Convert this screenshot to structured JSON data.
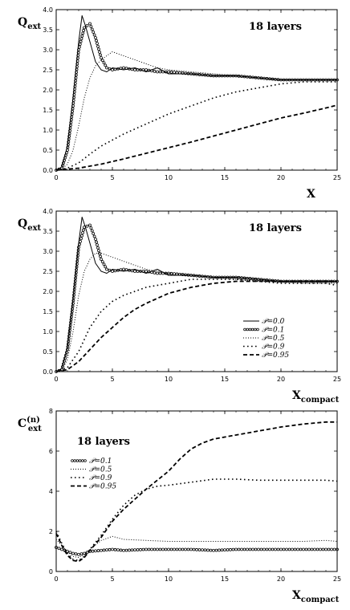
{
  "chart_data": [
    {
      "type": "line",
      "ylabel_main": "Q",
      "ylabel_sub": "ext",
      "xlabel_main": "X",
      "xlabel_sub": "",
      "annotation": "18 layers",
      "xlim": [
        0,
        25
      ],
      "ylim": [
        0,
        4
      ],
      "xticks": [
        "0",
        "5",
        "10",
        "15",
        "20",
        "25"
      ],
      "yticks": [
        "0.0",
        "0.5",
        "1.0",
        "1.5",
        "2.0",
        "2.5",
        "3.0",
        "3.5",
        "4.0"
      ],
      "series": [
        {
          "style": "solid",
          "x": [
            0,
            0.5,
            1,
            1.5,
            2,
            2.3,
            2.6,
            3,
            3.5,
            4,
            4.5,
            5,
            6,
            7,
            8,
            9,
            10,
            12,
            14,
            16,
            18,
            20,
            22,
            24,
            25
          ],
          "y": [
            0,
            0.08,
            0.6,
            1.8,
            3.2,
            3.85,
            3.6,
            3.2,
            2.7,
            2.5,
            2.45,
            2.55,
            2.5,
            2.55,
            2.45,
            2.55,
            2.4,
            2.4,
            2.35,
            2.35,
            2.3,
            2.25,
            2.25,
            2.25,
            2.25
          ]
        },
        {
          "style": "circles",
          "x": [
            0,
            0.5,
            1,
            1.5,
            2,
            2.5,
            3,
            3.5,
            4,
            4.5,
            5,
            6,
            7,
            8,
            9,
            10,
            12,
            14,
            16,
            18,
            20,
            22,
            24,
            25
          ],
          "y": [
            0,
            0.05,
            0.5,
            1.6,
            3.0,
            3.55,
            3.65,
            3.3,
            2.8,
            2.55,
            2.5,
            2.55,
            2.5,
            2.5,
            2.45,
            2.45,
            2.4,
            2.35,
            2.35,
            2.3,
            2.25,
            2.25,
            2.25,
            2.25
          ]
        },
        {
          "style": "dotted",
          "x": [
            0,
            0.5,
            1,
            1.5,
            2,
            2.5,
            3,
            3.5,
            4,
            4.5,
            5,
            5.5,
            6,
            7,
            8,
            9,
            10,
            12,
            14,
            16,
            18,
            20,
            22,
            24,
            25
          ],
          "y": [
            0,
            0.03,
            0.15,
            0.5,
            1.1,
            1.8,
            2.3,
            2.6,
            2.75,
            2.85,
            2.95,
            2.9,
            2.85,
            2.75,
            2.65,
            2.55,
            2.5,
            2.45,
            2.4,
            2.35,
            2.3,
            2.25,
            2.25,
            2.25,
            2.25
          ]
        },
        {
          "style": "sparse-dotted",
          "x": [
            0,
            1,
            2,
            3,
            4,
            5,
            6,
            8,
            10,
            12,
            14,
            16,
            18,
            20,
            22,
            24,
            25
          ],
          "y": [
            0,
            0.05,
            0.18,
            0.4,
            0.6,
            0.75,
            0.9,
            1.15,
            1.4,
            1.6,
            1.8,
            1.95,
            2.05,
            2.15,
            2.2,
            2.2,
            2.2
          ]
        },
        {
          "style": "dashed",
          "x": [
            0,
            2,
            4,
            6,
            8,
            10,
            12,
            14,
            16,
            18,
            20,
            22,
            24,
            25
          ],
          "y": [
            0,
            0.05,
            0.15,
            0.28,
            0.42,
            0.56,
            0.7,
            0.85,
            1.0,
            1.15,
            1.3,
            1.42,
            1.55,
            1.62
          ]
        }
      ]
    },
    {
      "type": "line",
      "ylabel_main": "Q",
      "ylabel_sub": "ext",
      "xlabel_main": "X",
      "xlabel_sub": "compact",
      "annotation": "18 layers",
      "xlim": [
        0,
        25
      ],
      "ylim": [
        0,
        4
      ],
      "xticks": [
        "0",
        "5",
        "10",
        "15",
        "20",
        "25"
      ],
      "yticks": [
        "0.0",
        "0.5",
        "1.0",
        "1.5",
        "2.0",
        "2.5",
        "3.0",
        "3.5",
        "4.0"
      ],
      "legend": [
        "𝒫=0.0",
        "𝒫=0.1",
        "𝒫=0.5",
        "𝒫=0.9",
        "𝒫=0.95"
      ],
      "series": [
        {
          "name": "𝒫=0.0",
          "style": "solid",
          "x": [
            0,
            0.5,
            1,
            1.5,
            2,
            2.3,
            2.6,
            3,
            3.5,
            4,
            4.5,
            5,
            6,
            7,
            8,
            9,
            10,
            12,
            14,
            16,
            18,
            20,
            22,
            24,
            25
          ],
          "y": [
            0,
            0.08,
            0.6,
            1.8,
            3.2,
            3.85,
            3.6,
            3.2,
            2.7,
            2.5,
            2.45,
            2.55,
            2.5,
            2.55,
            2.45,
            2.55,
            2.4,
            2.4,
            2.35,
            2.35,
            2.3,
            2.25,
            2.25,
            2.25,
            2.25
          ]
        },
        {
          "name": "𝒫=0.1",
          "style": "circles",
          "x": [
            0,
            0.5,
            1,
            1.5,
            2,
            2.5,
            3,
            3.5,
            4,
            4.5,
            5,
            6,
            7,
            8,
            9,
            10,
            12,
            14,
            16,
            18,
            20,
            22,
            24,
            25
          ],
          "y": [
            0,
            0.05,
            0.55,
            1.7,
            3.1,
            3.6,
            3.65,
            3.3,
            2.8,
            2.55,
            2.5,
            2.55,
            2.5,
            2.5,
            2.45,
            2.45,
            2.4,
            2.35,
            2.35,
            2.3,
            2.25,
            2.25,
            2.25,
            2.25
          ]
        },
        {
          "name": "𝒫=0.5",
          "style": "dotted",
          "x": [
            0,
            0.5,
            1,
            1.5,
            2,
            2.5,
            3,
            3.5,
            4,
            5,
            6,
            7,
            8,
            10,
            12,
            14,
            16,
            18,
            20,
            22,
            24,
            25
          ],
          "y": [
            0,
            0.04,
            0.3,
            1.0,
            1.9,
            2.5,
            2.8,
            2.95,
            2.95,
            2.85,
            2.75,
            2.65,
            2.55,
            2.45,
            2.4,
            2.35,
            2.3,
            2.25,
            2.25,
            2.2,
            2.2,
            2.2
          ]
        },
        {
          "name": "𝒫=0.9",
          "style": "sparse-dotted",
          "x": [
            0,
            1,
            2,
            3,
            4,
            5,
            6,
            7,
            8,
            10,
            12,
            14,
            16,
            18,
            20,
            22,
            24,
            25
          ],
          "y": [
            0,
            0.1,
            0.5,
            1.1,
            1.5,
            1.75,
            1.9,
            2.0,
            2.1,
            2.2,
            2.3,
            2.3,
            2.3,
            2.25,
            2.2,
            2.2,
            2.2,
            2.15
          ]
        },
        {
          "name": "𝒫=0.95",
          "style": "dashed",
          "x": [
            0,
            1,
            2,
            3,
            4,
            5,
            6,
            7,
            8,
            10,
            12,
            14,
            16,
            18,
            20,
            22,
            24,
            25
          ],
          "y": [
            0,
            0.05,
            0.25,
            0.55,
            0.85,
            1.1,
            1.35,
            1.55,
            1.7,
            1.95,
            2.1,
            2.2,
            2.25,
            2.25,
            2.25,
            2.25,
            2.25,
            2.25
          ]
        }
      ]
    },
    {
      "type": "line",
      "ylabel_main": "C",
      "ylabel_sub": "ext",
      "ylabel_sup": "(n)",
      "xlabel_main": "X",
      "xlabel_sub": "compact",
      "annotation": "18 layers",
      "xlim": [
        0,
        25
      ],
      "ylim": [
        0,
        8
      ],
      "xticks": [
        "0",
        "5",
        "10",
        "15",
        "20",
        "25"
      ],
      "yticks": [
        "0",
        "2",
        "4",
        "6",
        "8"
      ],
      "legend": [
        "𝒫=0.1",
        "𝒫=0.5",
        "𝒫=0.9",
        "𝒫=0.95"
      ],
      "series": [
        {
          "name": "𝒫=0.1",
          "style": "circles",
          "x": [
            0,
            0.5,
            1,
            1.5,
            2,
            2.5,
            3,
            4,
            5,
            6,
            8,
            10,
            12,
            14,
            16,
            18,
            20,
            22,
            24,
            25
          ],
          "y": [
            1.2,
            1.1,
            1.0,
            0.9,
            0.85,
            0.9,
            1.0,
            1.05,
            1.1,
            1.05,
            1.1,
            1.1,
            1.1,
            1.05,
            1.1,
            1.1,
            1.1,
            1.1,
            1.1,
            1.1
          ]
        },
        {
          "name": "𝒫=0.5",
          "style": "dotted",
          "x": [
            0,
            0.5,
            1,
            1.5,
            2,
            2.5,
            3,
            4,
            5,
            6,
            8,
            10,
            12,
            14,
            16,
            18,
            20,
            22,
            24,
            25
          ],
          "y": [
            1.6,
            1.3,
            1.0,
            0.75,
            0.7,
            0.85,
            1.1,
            1.55,
            1.75,
            1.6,
            1.55,
            1.5,
            1.5,
            1.5,
            1.5,
            1.5,
            1.5,
            1.5,
            1.55,
            1.5
          ]
        },
        {
          "name": "𝒫=0.9",
          "style": "sparse-dotted",
          "x": [
            0,
            0.5,
            1,
            1.5,
            2,
            2.5,
            3,
            4,
            5,
            6,
            7,
            8,
            9,
            10,
            12,
            14,
            16,
            18,
            20,
            22,
            24,
            25
          ],
          "y": [
            2.0,
            1.4,
            0.9,
            0.6,
            0.55,
            0.75,
            1.1,
            1.8,
            2.6,
            3.3,
            3.8,
            4.1,
            4.25,
            4.3,
            4.45,
            4.6,
            4.6,
            4.55,
            4.55,
            4.55,
            4.55,
            4.5
          ]
        },
        {
          "name": "𝒫=0.95",
          "style": "dashed",
          "x": [
            0,
            0.5,
            1,
            1.5,
            2,
            2.5,
            3,
            4,
            5,
            6,
            7,
            8,
            9,
            10,
            11,
            12,
            13,
            14,
            15,
            16,
            18,
            20,
            22,
            24,
            25
          ],
          "y": [
            1.9,
            1.3,
            0.8,
            0.55,
            0.5,
            0.7,
            1.05,
            1.7,
            2.5,
            3.1,
            3.6,
            4.1,
            4.55,
            5.0,
            5.6,
            6.1,
            6.4,
            6.6,
            6.7,
            6.8,
            7.0,
            7.2,
            7.35,
            7.45,
            7.45
          ]
        }
      ]
    }
  ]
}
